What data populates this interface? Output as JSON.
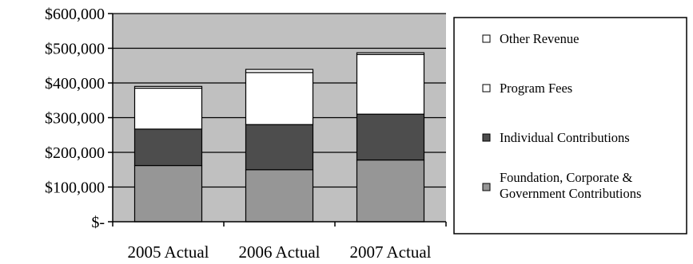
{
  "chart_data": {
    "type": "bar",
    "stacked": true,
    "categories": [
      "2005 Actual",
      "2006 Actual",
      "2007 Actual"
    ],
    "series": [
      {
        "name": "Foundation, Corporate & Government Contributions",
        "name_lines": [
          "Foundation, Corporate &",
          "Government Contributions"
        ],
        "values": [
          162000,
          150000,
          178000
        ],
        "color": "#969696"
      },
      {
        "name": "Individual Contributions",
        "name_lines": [
          "Individual Contributions"
        ],
        "values": [
          105000,
          130000,
          132000
        ],
        "color": "#4d4d4d"
      },
      {
        "name": "Program Fees",
        "name_lines": [
          "Program Fees"
        ],
        "values": [
          118000,
          150000,
          172000
        ],
        "color": "#ffffff"
      },
      {
        "name": "Other Revenue",
        "name_lines": [
          "Other Revenue"
        ],
        "values": [
          5000,
          9000,
          5000
        ],
        "color": "#ffffff"
      }
    ],
    "yticks": [
      {
        "value": 0,
        "label": "$-"
      },
      {
        "value": 100000,
        "label": "$100,000"
      },
      {
        "value": 200000,
        "label": "$200,000"
      },
      {
        "value": 300000,
        "label": "$300,000"
      },
      {
        "value": 400000,
        "label": "$400,000"
      },
      {
        "value": 500000,
        "label": "$500,000"
      },
      {
        "value": 600000,
        "label": "$600,000"
      }
    ],
    "ylim": [
      0,
      600000
    ],
    "grid": true,
    "plot_background": "#c0c0c0",
    "legend_position": "right",
    "legend_order": [
      "Other Revenue",
      "Program Fees",
      "Individual Contributions",
      "Foundation, Corporate & Government Contributions"
    ],
    "title": "",
    "xlabel": "",
    "ylabel": ""
  }
}
